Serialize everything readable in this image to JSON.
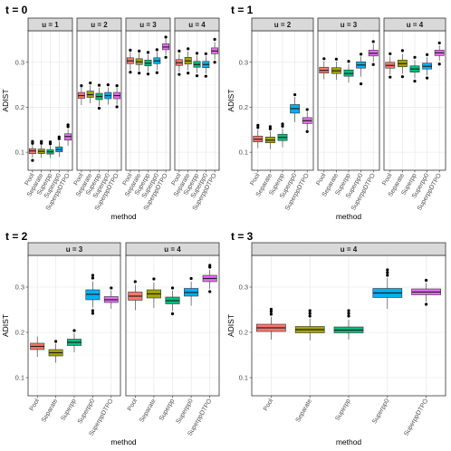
{
  "chart_data": [
    {
      "type": "boxplot",
      "title": "t = 0",
      "xlabel": "method",
      "ylabel": "ADIST",
      "ylim": [
        0.06,
        0.37
      ],
      "yticks": [
        0.1,
        0.2,
        0.3
      ],
      "ytick_labels": [
        "0.1",
        "0.2",
        "0.3"
      ],
      "categories": [
        "Pool",
        "Separate",
        "Superpp",
        "Superpp0",
        "SuperppDTPO"
      ],
      "facets": [
        {
          "label": "u = 1",
          "boxes": [
            {
              "q1": 0.097,
              "med": 0.103,
              "q3": 0.108,
              "lo": 0.088,
              "hi": 0.118,
              "out": [
                0.082,
                0.12,
                0.124
              ]
            },
            {
              "q1": 0.097,
              "med": 0.102,
              "q3": 0.107,
              "lo": 0.088,
              "hi": 0.116,
              "out": [
                0.12,
                0.124
              ]
            },
            {
              "q1": 0.096,
              "med": 0.101,
              "q3": 0.106,
              "lo": 0.087,
              "hi": 0.115,
              "out": [
                0.119,
                0.123
              ]
            },
            {
              "q1": 0.101,
              "med": 0.106,
              "q3": 0.112,
              "lo": 0.09,
              "hi": 0.124,
              "out": [
                0.13,
                0.134
              ]
            },
            {
              "q1": 0.127,
              "med": 0.135,
              "q3": 0.141,
              "lo": 0.114,
              "hi": 0.151,
              "out": [
                0.157,
                0.161
              ]
            }
          ]
        },
        {
          "label": "u = 2",
          "boxes": [
            {
              "q1": 0.22,
              "med": 0.226,
              "q3": 0.233,
              "lo": 0.205,
              "hi": 0.245,
              "out": [
                0.248
              ]
            },
            {
              "q1": 0.222,
              "med": 0.228,
              "q3": 0.236,
              "lo": 0.209,
              "hi": 0.249,
              "out": [
                0.254
              ]
            },
            {
              "q1": 0.217,
              "med": 0.224,
              "q3": 0.231,
              "lo": 0.203,
              "hi": 0.243,
              "out": [
                0.198,
                0.249
              ]
            },
            {
              "q1": 0.219,
              "med": 0.226,
              "q3": 0.233,
              "lo": 0.206,
              "hi": 0.244,
              "out": [
                0.25
              ]
            },
            {
              "q1": 0.219,
              "med": 0.226,
              "q3": 0.233,
              "lo": 0.206,
              "hi": 0.244,
              "out": [
                0.201,
                0.248
              ]
            }
          ]
        },
        {
          "label": "u = 3",
          "boxes": [
            {
              "q1": 0.297,
              "med": 0.303,
              "q3": 0.31,
              "lo": 0.283,
              "hi": 0.323,
              "out": [
                0.278,
                0.327
              ]
            },
            {
              "q1": 0.295,
              "med": 0.301,
              "q3": 0.308,
              "lo": 0.281,
              "hi": 0.321,
              "out": [
                0.276,
                0.325
              ]
            },
            {
              "q1": 0.292,
              "med": 0.298,
              "q3": 0.305,
              "lo": 0.279,
              "hi": 0.317,
              "out": [
                0.274,
                0.322
              ]
            },
            {
              "q1": 0.297,
              "med": 0.303,
              "q3": 0.31,
              "lo": 0.283,
              "hi": 0.323,
              "out": [
                0.277,
                0.328
              ]
            },
            {
              "q1": 0.328,
              "med": 0.334,
              "q3": 0.341,
              "lo": 0.316,
              "hi": 0.352,
              "out": [
                0.311,
                0.356
              ]
            }
          ]
        },
        {
          "label": "u = 4",
          "boxes": [
            {
              "q1": 0.293,
              "med": 0.299,
              "q3": 0.306,
              "lo": 0.279,
              "hi": 0.319,
              "out": [
                0.273,
                0.325
              ]
            },
            {
              "q1": 0.296,
              "med": 0.303,
              "q3": 0.311,
              "lo": 0.282,
              "hi": 0.324,
              "out": [
                0.276,
                0.33
              ]
            },
            {
              "q1": 0.289,
              "med": 0.295,
              "q3": 0.302,
              "lo": 0.276,
              "hi": 0.315,
              "out": [
                0.27,
                0.32
              ]
            },
            {
              "q1": 0.288,
              "med": 0.295,
              "q3": 0.302,
              "lo": 0.275,
              "hi": 0.314,
              "out": [
                0.269,
                0.319
              ]
            },
            {
              "q1": 0.319,
              "med": 0.325,
              "q3": 0.332,
              "lo": 0.306,
              "hi": 0.345,
              "out": [
                0.3,
                0.351
              ]
            }
          ]
        }
      ]
    },
    {
      "type": "boxplot",
      "title": "t = 1",
      "xlabel": "method",
      "ylabel": "ADIST",
      "ylim": [
        0.06,
        0.37
      ],
      "yticks": [
        0.1,
        0.2,
        0.3
      ],
      "ytick_labels": [
        "0.1",
        "0.2",
        "0.3"
      ],
      "categories": [
        "Pool",
        "Separate",
        "Superpp",
        "Superpp0",
        "SuperppDTPO"
      ],
      "facets": [
        {
          "label": "u = 2",
          "boxes": [
            {
              "q1": 0.123,
              "med": 0.129,
              "q3": 0.136,
              "lo": 0.109,
              "hi": 0.15,
              "out": [
                0.155,
                0.16
              ]
            },
            {
              "q1": 0.121,
              "med": 0.127,
              "q3": 0.134,
              "lo": 0.107,
              "hi": 0.147,
              "out": [
                0.152,
                0.157
              ]
            },
            {
              "q1": 0.126,
              "med": 0.133,
              "q3": 0.14,
              "lo": 0.111,
              "hi": 0.153,
              "out": [
                0.158,
                0.163
              ]
            },
            {
              "q1": 0.187,
              "med": 0.197,
              "q3": 0.206,
              "lo": 0.167,
              "hi": 0.223,
              "out": [
                0.228
              ]
            },
            {
              "q1": 0.164,
              "med": 0.17,
              "q3": 0.177,
              "lo": 0.15,
              "hi": 0.19,
              "out": [
                0.146,
                0.195
              ]
            }
          ]
        },
        {
          "label": "u = 3",
          "boxes": [
            {
              "q1": 0.276,
              "med": 0.282,
              "q3": 0.289,
              "lo": 0.262,
              "hi": 0.302,
              "out": [
                0.308
              ]
            },
            {
              "q1": 0.275,
              "med": 0.281,
              "q3": 0.288,
              "lo": 0.261,
              "hi": 0.301,
              "out": [
                0.307
              ]
            },
            {
              "q1": 0.269,
              "med": 0.275,
              "q3": 0.283,
              "lo": 0.255,
              "hi": 0.296,
              "out": [
                0.302
              ]
            },
            {
              "q1": 0.287,
              "med": 0.294,
              "q3": 0.301,
              "lo": 0.268,
              "hi": 0.313,
              "out": [
                0.252,
                0.318
              ]
            },
            {
              "q1": 0.314,
              "med": 0.32,
              "q3": 0.327,
              "lo": 0.301,
              "hi": 0.34,
              "out": [
                0.295,
                0.346
              ]
            }
          ]
        },
        {
          "label": "u = 4",
          "boxes": [
            {
              "q1": 0.287,
              "med": 0.293,
              "q3": 0.3,
              "lo": 0.273,
              "hi": 0.313,
              "out": [
                0.267,
                0.319
              ]
            },
            {
              "q1": 0.29,
              "med": 0.297,
              "q3": 0.305,
              "lo": 0.275,
              "hi": 0.318,
              "out": [
                0.268,
                0.326
              ]
            },
            {
              "q1": 0.278,
              "med": 0.285,
              "q3": 0.292,
              "lo": 0.264,
              "hi": 0.305,
              "out": [
                0.258,
                0.311
              ]
            },
            {
              "q1": 0.285,
              "med": 0.291,
              "q3": 0.298,
              "lo": 0.271,
              "hi": 0.311,
              "out": [
                0.265,
                0.317
              ]
            },
            {
              "q1": 0.315,
              "med": 0.321,
              "q3": 0.327,
              "lo": 0.303,
              "hi": 0.337,
              "out": [
                0.296,
                0.343
              ]
            }
          ]
        }
      ]
    },
    {
      "type": "boxplot",
      "title": "t = 2",
      "xlabel": "method",
      "ylabel": "ADIST",
      "ylim": [
        0.06,
        0.37
      ],
      "yticks": [
        0.1,
        0.2,
        0.3
      ],
      "ytick_labels": [
        "0.1",
        "0.2",
        "0.3"
      ],
      "categories": [
        "Pool",
        "Separate",
        "Superpp",
        "Superpp0",
        "SuperppDTPO"
      ],
      "facets": [
        {
          "label": "u = 3",
          "boxes": [
            {
              "q1": 0.162,
              "med": 0.169,
              "q3": 0.176,
              "lo": 0.146,
              "hi": 0.191,
              "out": []
            },
            {
              "q1": 0.148,
              "med": 0.155,
              "q3": 0.162,
              "lo": 0.133,
              "hi": 0.175,
              "out": [
                0.18
              ]
            },
            {
              "q1": 0.171,
              "med": 0.178,
              "q3": 0.185,
              "lo": 0.156,
              "hi": 0.198,
              "out": [
                0.204
              ]
            },
            {
              "q1": 0.272,
              "med": 0.284,
              "q3": 0.294,
              "lo": 0.255,
              "hi": 0.312,
              "out": [
                0.242,
                0.248,
                0.32,
                0.326
              ]
            },
            {
              "q1": 0.266,
              "med": 0.272,
              "q3": 0.279,
              "lo": 0.252,
              "hi": 0.292,
              "out": [
                0.298
              ]
            }
          ]
        },
        {
          "label": "u = 4",
          "boxes": [
            {
              "q1": 0.271,
              "med": 0.28,
              "q3": 0.289,
              "lo": 0.249,
              "hi": 0.305,
              "out": [
                0.312
              ]
            },
            {
              "q1": 0.276,
              "med": 0.285,
              "q3": 0.294,
              "lo": 0.254,
              "hi": 0.31,
              "out": [
                0.318
              ]
            },
            {
              "q1": 0.263,
              "med": 0.27,
              "q3": 0.278,
              "lo": 0.247,
              "hi": 0.292,
              "out": [
                0.241,
                0.298
              ]
            },
            {
              "q1": 0.28,
              "med": 0.288,
              "q3": 0.297,
              "lo": 0.259,
              "hi": 0.312,
              "out": [
                0.319
              ]
            },
            {
              "q1": 0.312,
              "med": 0.319,
              "q3": 0.326,
              "lo": 0.296,
              "hi": 0.338,
              "out": [
                0.29,
                0.344,
                0.348
              ]
            }
          ]
        }
      ]
    },
    {
      "type": "boxplot",
      "title": "t = 3",
      "xlabel": "method",
      "ylabel": "ADIST",
      "ylim": [
        0.06,
        0.37
      ],
      "yticks": [
        0.1,
        0.2,
        0.3
      ],
      "ytick_labels": [
        "0.1",
        "0.2",
        "0.3"
      ],
      "categories": [
        "Pool",
        "Separate",
        "Superpp",
        "Superpp0",
        "SuperppDTPO"
      ],
      "facets": [
        {
          "label": "u = 4",
          "boxes": [
            {
              "q1": 0.202,
              "med": 0.21,
              "q3": 0.218,
              "lo": 0.184,
              "hi": 0.234,
              "out": [
                0.24,
                0.246,
                0.251
              ]
            },
            {
              "q1": 0.199,
              "med": 0.206,
              "q3": 0.213,
              "lo": 0.182,
              "hi": 0.23,
              "out": [
                0.236,
                0.242,
                0.248
              ]
            },
            {
              "q1": 0.199,
              "med": 0.205,
              "q3": 0.212,
              "lo": 0.184,
              "hi": 0.228,
              "out": [
                0.236,
                0.242,
                0.248
              ]
            },
            {
              "q1": 0.277,
              "med": 0.287,
              "q3": 0.297,
              "lo": 0.252,
              "hi": 0.32,
              "out": [
                0.326,
                0.332,
                0.338
              ]
            },
            {
              "q1": 0.283,
              "med": 0.289,
              "q3": 0.296,
              "lo": 0.268,
              "hi": 0.309,
              "out": [
                0.262,
                0.315
              ]
            }
          ]
        }
      ]
    }
  ],
  "colors": {
    "Pool": "#F8766D",
    "Separate": "#A3A500",
    "Superpp": "#00BF7D",
    "Superpp0": "#00B0F6",
    "SuperppDTPO": "#E76BF3",
    "panel_border": "#333333",
    "strip_fill": "#D9D9D9",
    "grid_major": "#EBEBEB",
    "grid_minor": "#F5F5F5"
  }
}
